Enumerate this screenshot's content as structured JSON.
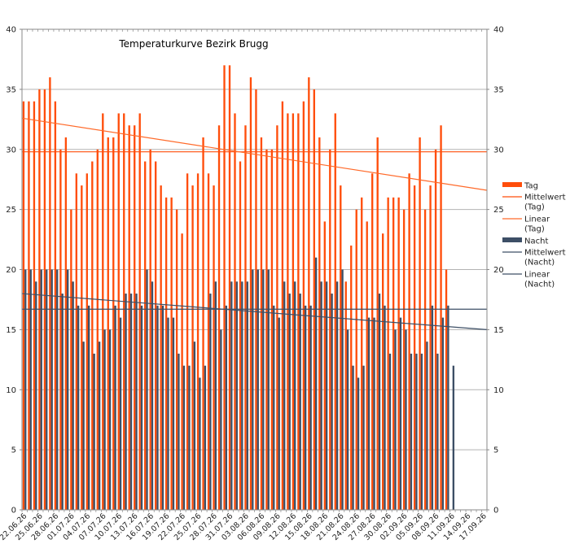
{
  "chart_data": {
    "type": "bar",
    "title": "Temperaturkurve Bezirk Brugg",
    "ylim": [
      0,
      40
    ],
    "yticks": [
      0,
      5,
      10,
      15,
      20,
      25,
      30,
      35,
      40
    ],
    "grid": true,
    "legend_position": "right",
    "start_date": "22.06.26",
    "num_days": 88,
    "x_tick_labels": [
      "22.06.26",
      "25.06.26",
      "28.06.26",
      "01.07.26",
      "04.07.26",
      "07.07.26",
      "10.07.26",
      "13.07.26",
      "16.07.26",
      "19.07.26",
      "22.07.26",
      "25.07.26",
      "28.07.26",
      "31.07.26",
      "03.08.26",
      "06.08.26",
      "09.08.26",
      "12.08.26",
      "15.08.26",
      "18.08.26",
      "21.08.26",
      "24.08.26",
      "27.08.26",
      "30.08.26",
      "02.09.26",
      "05.09.26",
      "08.09.26",
      "11.09.26",
      "14.09.26",
      "17.09.26"
    ],
    "series": [
      {
        "name": "Tag",
        "color": "#ff4d0a",
        "values": [
          34,
          34,
          34,
          35,
          35,
          36,
          34,
          30,
          31,
          25,
          28,
          27,
          28,
          29,
          30,
          33,
          31,
          31,
          33,
          33,
          32,
          32,
          33,
          29,
          30,
          29,
          27,
          26,
          26,
          25,
          23,
          28,
          27,
          28,
          31,
          28,
          27,
          32,
          37,
          37,
          33,
          29,
          32,
          36,
          35,
          31,
          30,
          30,
          32,
          34,
          33,
          33,
          33,
          34,
          36,
          35,
          31,
          24,
          30,
          33,
          27,
          19,
          22,
          25,
          26,
          24,
          28,
          31,
          23,
          26,
          26,
          26,
          25,
          28,
          27,
          31,
          25,
          27,
          30,
          32,
          20,
          null,
          null,
          null,
          null,
          null,
          null,
          null
        ]
      },
      {
        "name": "Nacht",
        "color": "#3d4f66",
        "values": [
          20,
          20,
          19,
          20,
          20,
          20,
          20,
          18,
          20,
          19,
          17,
          14,
          17,
          13,
          14,
          15,
          15,
          17,
          16,
          18,
          18,
          18,
          17,
          20,
          19,
          17,
          17,
          16,
          16,
          13,
          12,
          12,
          14,
          11,
          12,
          18,
          19,
          15,
          17,
          19,
          19,
          19,
          19,
          20,
          20,
          20,
          20,
          17,
          16,
          19,
          18,
          19,
          18,
          17,
          17,
          21,
          19,
          19,
          18,
          19,
          20,
          15,
          12,
          11,
          12,
          16,
          16,
          18,
          17,
          13,
          15,
          16,
          15,
          13,
          13,
          13,
          14,
          17,
          13,
          16,
          17,
          12,
          null,
          null,
          null,
          null,
          null,
          null
        ]
      }
    ],
    "reference_lines": [
      {
        "name": "Mittelwert\n(Tag)",
        "type": "mean",
        "y": 29.8,
        "color": "#ff4d0a"
      },
      {
        "name": "Linear (Tag)",
        "type": "trend",
        "y_start": 32.6,
        "y_end": 26.6,
        "color": "#ff6a2a"
      },
      {
        "name": "Mittelwert\n(Nacht)",
        "type": "mean",
        "y": 16.7,
        "color": "#3d4f66"
      },
      {
        "name": "Linear\n(Nacht)",
        "type": "trend",
        "y_start": 18.0,
        "y_end": 15.0,
        "color": "#3d4f66"
      }
    ],
    "legend": [
      {
        "label": "Tag",
        "kind": "box",
        "color": "#ff4d0a"
      },
      {
        "label": "Mittelwert (Tag)",
        "kind": "line",
        "color": "#ff4d0a"
      },
      {
        "label": "Linear (Tag)",
        "kind": "line",
        "color": "#ff6a2a"
      },
      {
        "label": "Nacht",
        "kind": "box",
        "color": "#3d4f66"
      },
      {
        "label": "Mittelwert (Nacht)",
        "kind": "line",
        "color": "#3d4f66"
      },
      {
        "label": "Linear (Nacht)",
        "kind": "line",
        "color": "#3d4f66"
      }
    ]
  }
}
